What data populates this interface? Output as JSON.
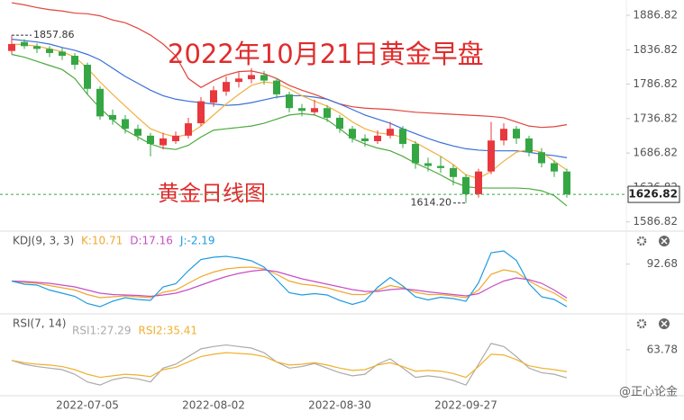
{
  "chart_data": [
    {
      "type": "candlestick",
      "title": "2022年10月21日黄金早盘",
      "subtitle": "黄金日线图",
      "categories": [
        null,
        null,
        null,
        null,
        null,
        null,
        "2022-07-05",
        null,
        null,
        null,
        null,
        null,
        null,
        null,
        null,
        null,
        "2022-08-02",
        null,
        null,
        null,
        null,
        null,
        null,
        null,
        null,
        null,
        "2022-08-30",
        null,
        null,
        null,
        null,
        null,
        null,
        null,
        null,
        null,
        "2022-09-27",
        null,
        null,
        null,
        null,
        null,
        null,
        null,
        null
      ],
      "open": [
        1835,
        1848,
        1842,
        1838,
        1834,
        1828,
        1815,
        1780,
        1742,
        1736,
        1722,
        1712,
        1698,
        1704,
        1712,
        1730,
        1760,
        1776,
        1790,
        1794,
        1800,
        1792,
        1772,
        1752,
        1746,
        1752,
        1738,
        1722,
        1708,
        1704,
        1712,
        1722,
        1700,
        1672,
        1668,
        1665,
        1652,
        1627,
        1660,
        1705,
        1722,
        1708,
        1688,
        1672,
        1660
      ],
      "high": [
        1857.86,
        1852,
        1846,
        1842,
        1840,
        1832,
        1818,
        1784,
        1750,
        1742,
        1728,
        1716,
        1716,
        1718,
        1738,
        1768,
        1784,
        1798,
        1804,
        1810,
        1806,
        1796,
        1776,
        1758,
        1764,
        1756,
        1742,
        1726,
        1714,
        1720,
        1732,
        1726,
        1704,
        1680,
        1682,
        1670,
        1656,
        1664,
        1732,
        1730,
        1726,
        1712,
        1694,
        1676,
        1664
      ],
      "low": [
        1830,
        1838,
        1832,
        1826,
        1822,
        1808,
        1772,
        1735,
        1728,
        1715,
        1705,
        1682,
        1692,
        1700,
        1708,
        1726,
        1754,
        1770,
        1782,
        1788,
        1786,
        1766,
        1746,
        1740,
        1742,
        1732,
        1716,
        1702,
        1696,
        1700,
        1708,
        1694,
        1664,
        1660,
        1658,
        1640,
        1614.2,
        1622,
        1656,
        1698,
        1700,
        1682,
        1666,
        1652,
        1622
      ],
      "close": [
        1845,
        1842,
        1838,
        1832,
        1828,
        1815,
        1780,
        1740,
        1735,
        1722,
        1712,
        1700,
        1708,
        1712,
        1730,
        1762,
        1778,
        1790,
        1795,
        1800,
        1792,
        1772,
        1752,
        1748,
        1752,
        1738,
        1722,
        1708,
        1704,
        1712,
        1722,
        1700,
        1672,
        1668,
        1665,
        1652,
        1627,
        1660,
        1705,
        1722,
        1708,
        1688,
        1672,
        1660,
        1626.82
      ],
      "up_color": "#e8383d",
      "down_color": "#35a644",
      "series": [
        {
          "color": "#e0443c",
          "values": [
            1905,
            1902,
            1898,
            1895,
            1893,
            1890,
            1889,
            1886,
            1880,
            1876,
            1868,
            1858,
            1845,
            1828,
            1795,
            1782,
            1792,
            1800,
            1805,
            1806,
            1802,
            1795,
            1785,
            1778,
            1772,
            1765,
            1758,
            1754,
            1752,
            1751,
            1750,
            1748,
            1746,
            1745,
            1744,
            1743,
            1742,
            1741,
            1740,
            1738,
            1732,
            1726,
            1724,
            1725,
            1728
          ]
        },
        {
          "color": "#3a6fd8",
          "values": [
            1852,
            1850,
            1848,
            1845,
            1840,
            1836,
            1830,
            1822,
            1810,
            1798,
            1788,
            1778,
            1770,
            1765,
            1762,
            1760,
            1758,
            1756,
            1757,
            1760,
            1764,
            1768,
            1770,
            1770,
            1768,
            1765,
            1758,
            1750,
            1742,
            1736,
            1730,
            1722,
            1715,
            1708,
            1702,
            1697,
            1693,
            1691,
            1690,
            1690,
            1690,
            1688,
            1685,
            1683,
            1680
          ]
        },
        {
          "color": "#4caa3c",
          "values": [
            1830,
            1826,
            1820,
            1814,
            1808,
            1795,
            1772,
            1752,
            1735,
            1720,
            1710,
            1700,
            1694,
            1692,
            1698,
            1710,
            1720,
            1722,
            1724,
            1726,
            1730,
            1736,
            1742,
            1744,
            1742,
            1735,
            1722,
            1708,
            1700,
            1694,
            1690,
            1682,
            1672,
            1664,
            1655,
            1645,
            1638,
            1636,
            1636,
            1636,
            1636,
            1635,
            1632,
            1625,
            1610
          ]
        },
        {
          "color": "#f0b040",
          "values": [
            1845,
            1844,
            1842,
            1838,
            1834,
            1826,
            1810,
            1790,
            1772,
            1755,
            1738,
            1722,
            1715,
            1710,
            1714,
            1726,
            1742,
            1758,
            1772,
            1785,
            1790,
            1788,
            1780,
            1770,
            1762,
            1755,
            1745,
            1732,
            1722,
            1716,
            1714,
            1710,
            1702,
            1692,
            1682,
            1670,
            1655,
            1650,
            1660,
            1675,
            1688,
            1692,
            1688,
            1675,
            1662
          ]
        }
      ],
      "max_label": 1857.86,
      "min_label": {
        "value": 1614.2,
        "label": "1614.20"
      },
      "last_price": 1626.82,
      "ylim": [
        1576,
        1909
      ],
      "yticks": [
        1886.82,
        1836.82,
        1786.82,
        1736.82,
        1686.82,
        1636.82,
        1586.82
      ]
    },
    {
      "type": "line",
      "title": "KDJ(9, 3, 3)",
      "series": [
        {
          "name": "K:10.71",
          "color": "#f0a830",
          "values": [
            55,
            52,
            50,
            45,
            40,
            35,
            25,
            18,
            20,
            22,
            20,
            18,
            30,
            35,
            50,
            65,
            75,
            82,
            85,
            86,
            82,
            70,
            55,
            48,
            45,
            40,
            32,
            25,
            25,
            35,
            45,
            40,
            30,
            25,
            25,
            22,
            18,
            35,
            70,
            80,
            75,
            55,
            40,
            28,
            10.71
          ]
        },
        {
          "name": "D:17.16",
          "color": "#c64fc6",
          "values": [
            55,
            54,
            52,
            50,
            46,
            42,
            35,
            28,
            25,
            24,
            23,
            21,
            24,
            28,
            36,
            46,
            56,
            65,
            72,
            77,
            80,
            76,
            68,
            60,
            54,
            48,
            42,
            36,
            32,
            32,
            36,
            38,
            35,
            31,
            28,
            25,
            22,
            27,
            42,
            55,
            62,
            58,
            50,
            35,
            17.16
          ]
        },
        {
          "name": "J:-2.19",
          "color": "#1e9be0",
          "values": [
            55,
            48,
            46,
            35,
            28,
            21,
            5,
            -2,
            10,
            18,
            14,
            12,
            42,
            49,
            78,
            103,
            108,
            110,
            106,
            100,
            86,
            58,
            29,
            24,
            27,
            24,
            12,
            3,
            11,
            41,
            63,
            44,
            20,
            13,
            19,
            16,
            10,
            51,
            118,
            122,
            101,
            49,
            20,
            14,
            -2.19
          ]
        }
      ],
      "ylim": [
        -10,
        130
      ],
      "yticks": [
        92.68
      ]
    },
    {
      "type": "line",
      "title": "RSI(7, 14)",
      "series": [
        {
          "name": "RSI1:27.29",
          "color": "#aaaaaa",
          "values": [
            50,
            45,
            42,
            40,
            38,
            32,
            22,
            18,
            25,
            28,
            26,
            22,
            40,
            45,
            55,
            65,
            68,
            70,
            68,
            66,
            60,
            48,
            40,
            42,
            46,
            40,
            34,
            30,
            32,
            45,
            52,
            40,
            28,
            30,
            28,
            24,
            18,
            45,
            72,
            68,
            55,
            40,
            34,
            32,
            27.29
          ]
        },
        {
          "name": "RSI2:35.41",
          "color": "#f0b030",
          "values": [
            50,
            47,
            45,
            44,
            42,
            38,
            32,
            28,
            30,
            32,
            31,
            29,
            38,
            41,
            48,
            55,
            58,
            60,
            59,
            58,
            55,
            48,
            44,
            45,
            47,
            44,
            40,
            37,
            38,
            44,
            47,
            42,
            36,
            37,
            36,
            33,
            28,
            42,
            58,
            57,
            51,
            43,
            40,
            38,
            35.41
          ]
        }
      ],
      "ylim": [
        10,
        80
      ],
      "yticks": [
        63.78
      ]
    }
  ],
  "watermark": "@正心论金"
}
